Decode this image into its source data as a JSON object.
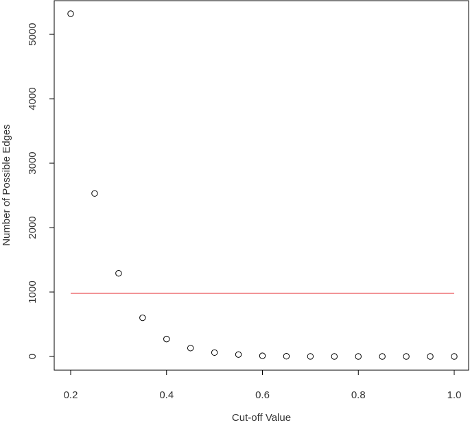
{
  "chart_data": {
    "type": "scatter",
    "title": "",
    "xlabel": "Cut-off Value",
    "ylabel": "Number of Possible Edges",
    "xlim": [
      0.2,
      1.0
    ],
    "ylim": [
      0,
      5320
    ],
    "x_ticks": [
      0.2,
      0.4,
      0.6,
      0.8,
      1.0
    ],
    "x_tick_labels": [
      "0.2",
      "0.4",
      "0.6",
      "0.8",
      "1.0"
    ],
    "y_ticks": [
      0,
      1000,
      2000,
      3000,
      4000,
      5000
    ],
    "y_tick_labels": [
      "0",
      "1000",
      "2000",
      "3000",
      "4000",
      "5000"
    ],
    "grid": false,
    "series": [
      {
        "marker": "open-circle",
        "color": "#000000",
        "x": [
          0.2,
          0.25,
          0.3,
          0.35,
          0.4,
          0.45,
          0.5,
          0.55,
          0.6,
          0.65,
          0.7,
          0.75,
          0.8,
          0.85,
          0.9,
          0.95,
          1.0
        ],
        "y": [
          5320,
          2530,
          1290,
          600,
          270,
          130,
          60,
          30,
          10,
          3,
          1,
          0,
          0,
          0,
          0,
          0,
          0
        ]
      }
    ],
    "reference_line": {
      "y": 980,
      "x_range": [
        0.2,
        1.0
      ],
      "color": "#e8474b"
    }
  }
}
